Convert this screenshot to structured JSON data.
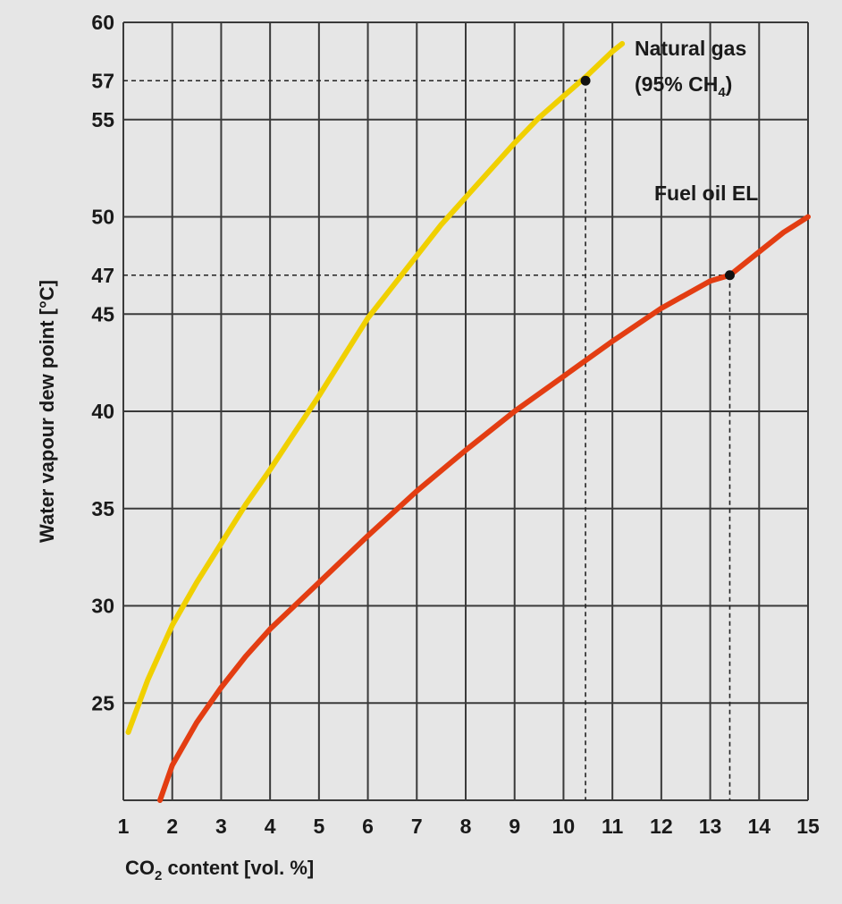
{
  "chart_data": {
    "type": "line",
    "xlabel": "CO",
    "xlabel_sub": "2",
    "xlabel_rest": " content [vol. %]",
    "ylabel": "Water vapour dew point [°C]",
    "xlim": [
      1,
      15
    ],
    "ylim": [
      20,
      60
    ],
    "x_ticks": [
      1,
      2,
      3,
      4,
      5,
      6,
      7,
      8,
      9,
      10,
      11,
      12,
      13,
      14,
      15
    ],
    "y_gridlines": [
      20,
      25,
      30,
      35,
      40,
      45,
      50,
      55,
      60
    ],
    "y_tick_labels": [
      "60",
      "57",
      "55",
      "50",
      "47",
      "45",
      "40",
      "35",
      "30",
      "25"
    ],
    "y_tick_values": [
      60,
      57,
      55,
      50,
      47,
      45,
      40,
      35,
      30,
      25
    ],
    "series": [
      {
        "name": "Natural gas",
        "label_line1": "Natural gas",
        "label_line2_prefix": "(95% CH",
        "label_line2_sub": "4",
        "label_line2_suffix": ")",
        "color": "#f0d000",
        "x": [
          1.1,
          1.5,
          2,
          2.5,
          3,
          3.5,
          4,
          4.5,
          5,
          5.5,
          6,
          6.5,
          7,
          7.5,
          8,
          8.5,
          9,
          9.5,
          10,
          10.5,
          11,
          11.2
        ],
        "y": [
          23.5,
          26.2,
          29,
          31.2,
          33.2,
          35.2,
          37,
          38.9,
          40.8,
          42.8,
          44.8,
          46.4,
          48,
          49.6,
          51,
          52.4,
          53.8,
          55.1,
          56.2,
          57.3,
          58.5,
          58.9
        ],
        "marker": {
          "x": 10.45,
          "y": 57
        }
      },
      {
        "name": "Fuel oil EL",
        "label_line1": "Fuel oil EL",
        "color": "#e33d12",
        "x": [
          1.75,
          2,
          2.5,
          3,
          3.5,
          4,
          4.5,
          5,
          6,
          7,
          8,
          9,
          10,
          11,
          12,
          13,
          13.4,
          14,
          14.5,
          15
        ],
        "y": [
          20,
          21.8,
          24,
          25.8,
          27.4,
          28.8,
          30,
          31.2,
          33.6,
          35.9,
          38,
          40,
          41.8,
          43.6,
          45.3,
          46.7,
          47,
          48.2,
          49.2,
          50
        ],
        "marker": {
          "x": 13.4,
          "y": 47
        }
      }
    ]
  }
}
